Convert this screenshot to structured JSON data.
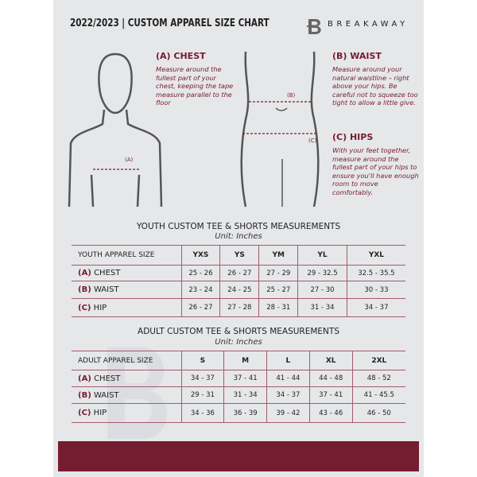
{
  "header": {
    "title": "2022/2023  |  CUSTOM APPAREL SIZE CHART",
    "brand": "BREAKAWAY",
    "logo_letter": "B"
  },
  "measures": {
    "chest": {
      "title": "(A) CHEST",
      "text": "Measure around the fullest part of your chest, keeping the tape measure parallel to the floor",
      "marker": "(A)"
    },
    "waist": {
      "title": "(B) WAIST",
      "text": "Measure around your natural waistline – right above your hips. Be careful not to squeeze too tight to allow a little give.",
      "marker": "(B)"
    },
    "hips": {
      "title": "(C) HIPS",
      "text": "With your feet together, measure around the fullest part of your hips to ensure you'll have enough room to move comfortably.",
      "marker": "(C)"
    }
  },
  "youth": {
    "title": "YOUTH CUSTOM TEE & SHORTS MEASUREMENTS",
    "unit": "Unit: Inches",
    "header": [
      "YOUTH APPAREL SIZE",
      "YXS",
      "YS",
      "YM",
      "YL",
      "YXL"
    ],
    "rows": [
      {
        "code": "(A)",
        "name": "CHEST",
        "values": [
          "25 - 26",
          "26 - 27",
          "27 - 29",
          "29 - 32.5",
          "32.5 - 35.5"
        ]
      },
      {
        "code": "(B)",
        "name": "WAIST",
        "values": [
          "23 - 24",
          "24 - 25",
          "25 - 27",
          "27 - 30",
          "30 - 33"
        ]
      },
      {
        "code": "(C)",
        "name": "HIP",
        "values": [
          "26 - 27",
          "27 - 28",
          "28 - 31",
          "31 - 34",
          "34 - 37"
        ]
      }
    ]
  },
  "adult": {
    "title": "ADULT CUSTOM TEE & SHORTS MEASUREMENTS",
    "unit": "Unit: Inches",
    "header": [
      "ADULT APPAREL SIZE",
      "S",
      "M",
      "L",
      "XL",
      "2XL"
    ],
    "rows": [
      {
        "code": "(A)",
        "name": "CHEST",
        "values": [
          "34 - 37",
          "37 - 41",
          "41 - 44",
          "44 - 48",
          "48 - 52"
        ]
      },
      {
        "code": "(B)",
        "name": "WAIST",
        "values": [
          "29 - 31",
          "31 - 34",
          "34 - 37",
          "37 - 41",
          "41 - 45.5"
        ]
      },
      {
        "code": "(C)",
        "name": "HIP",
        "values": [
          "34 - 36",
          "36 - 39",
          "39 - 42",
          "43 - 46",
          "46 - 50"
        ]
      }
    ]
  },
  "colors": {
    "accent": "#751c31",
    "background": "#e6e7e9"
  }
}
